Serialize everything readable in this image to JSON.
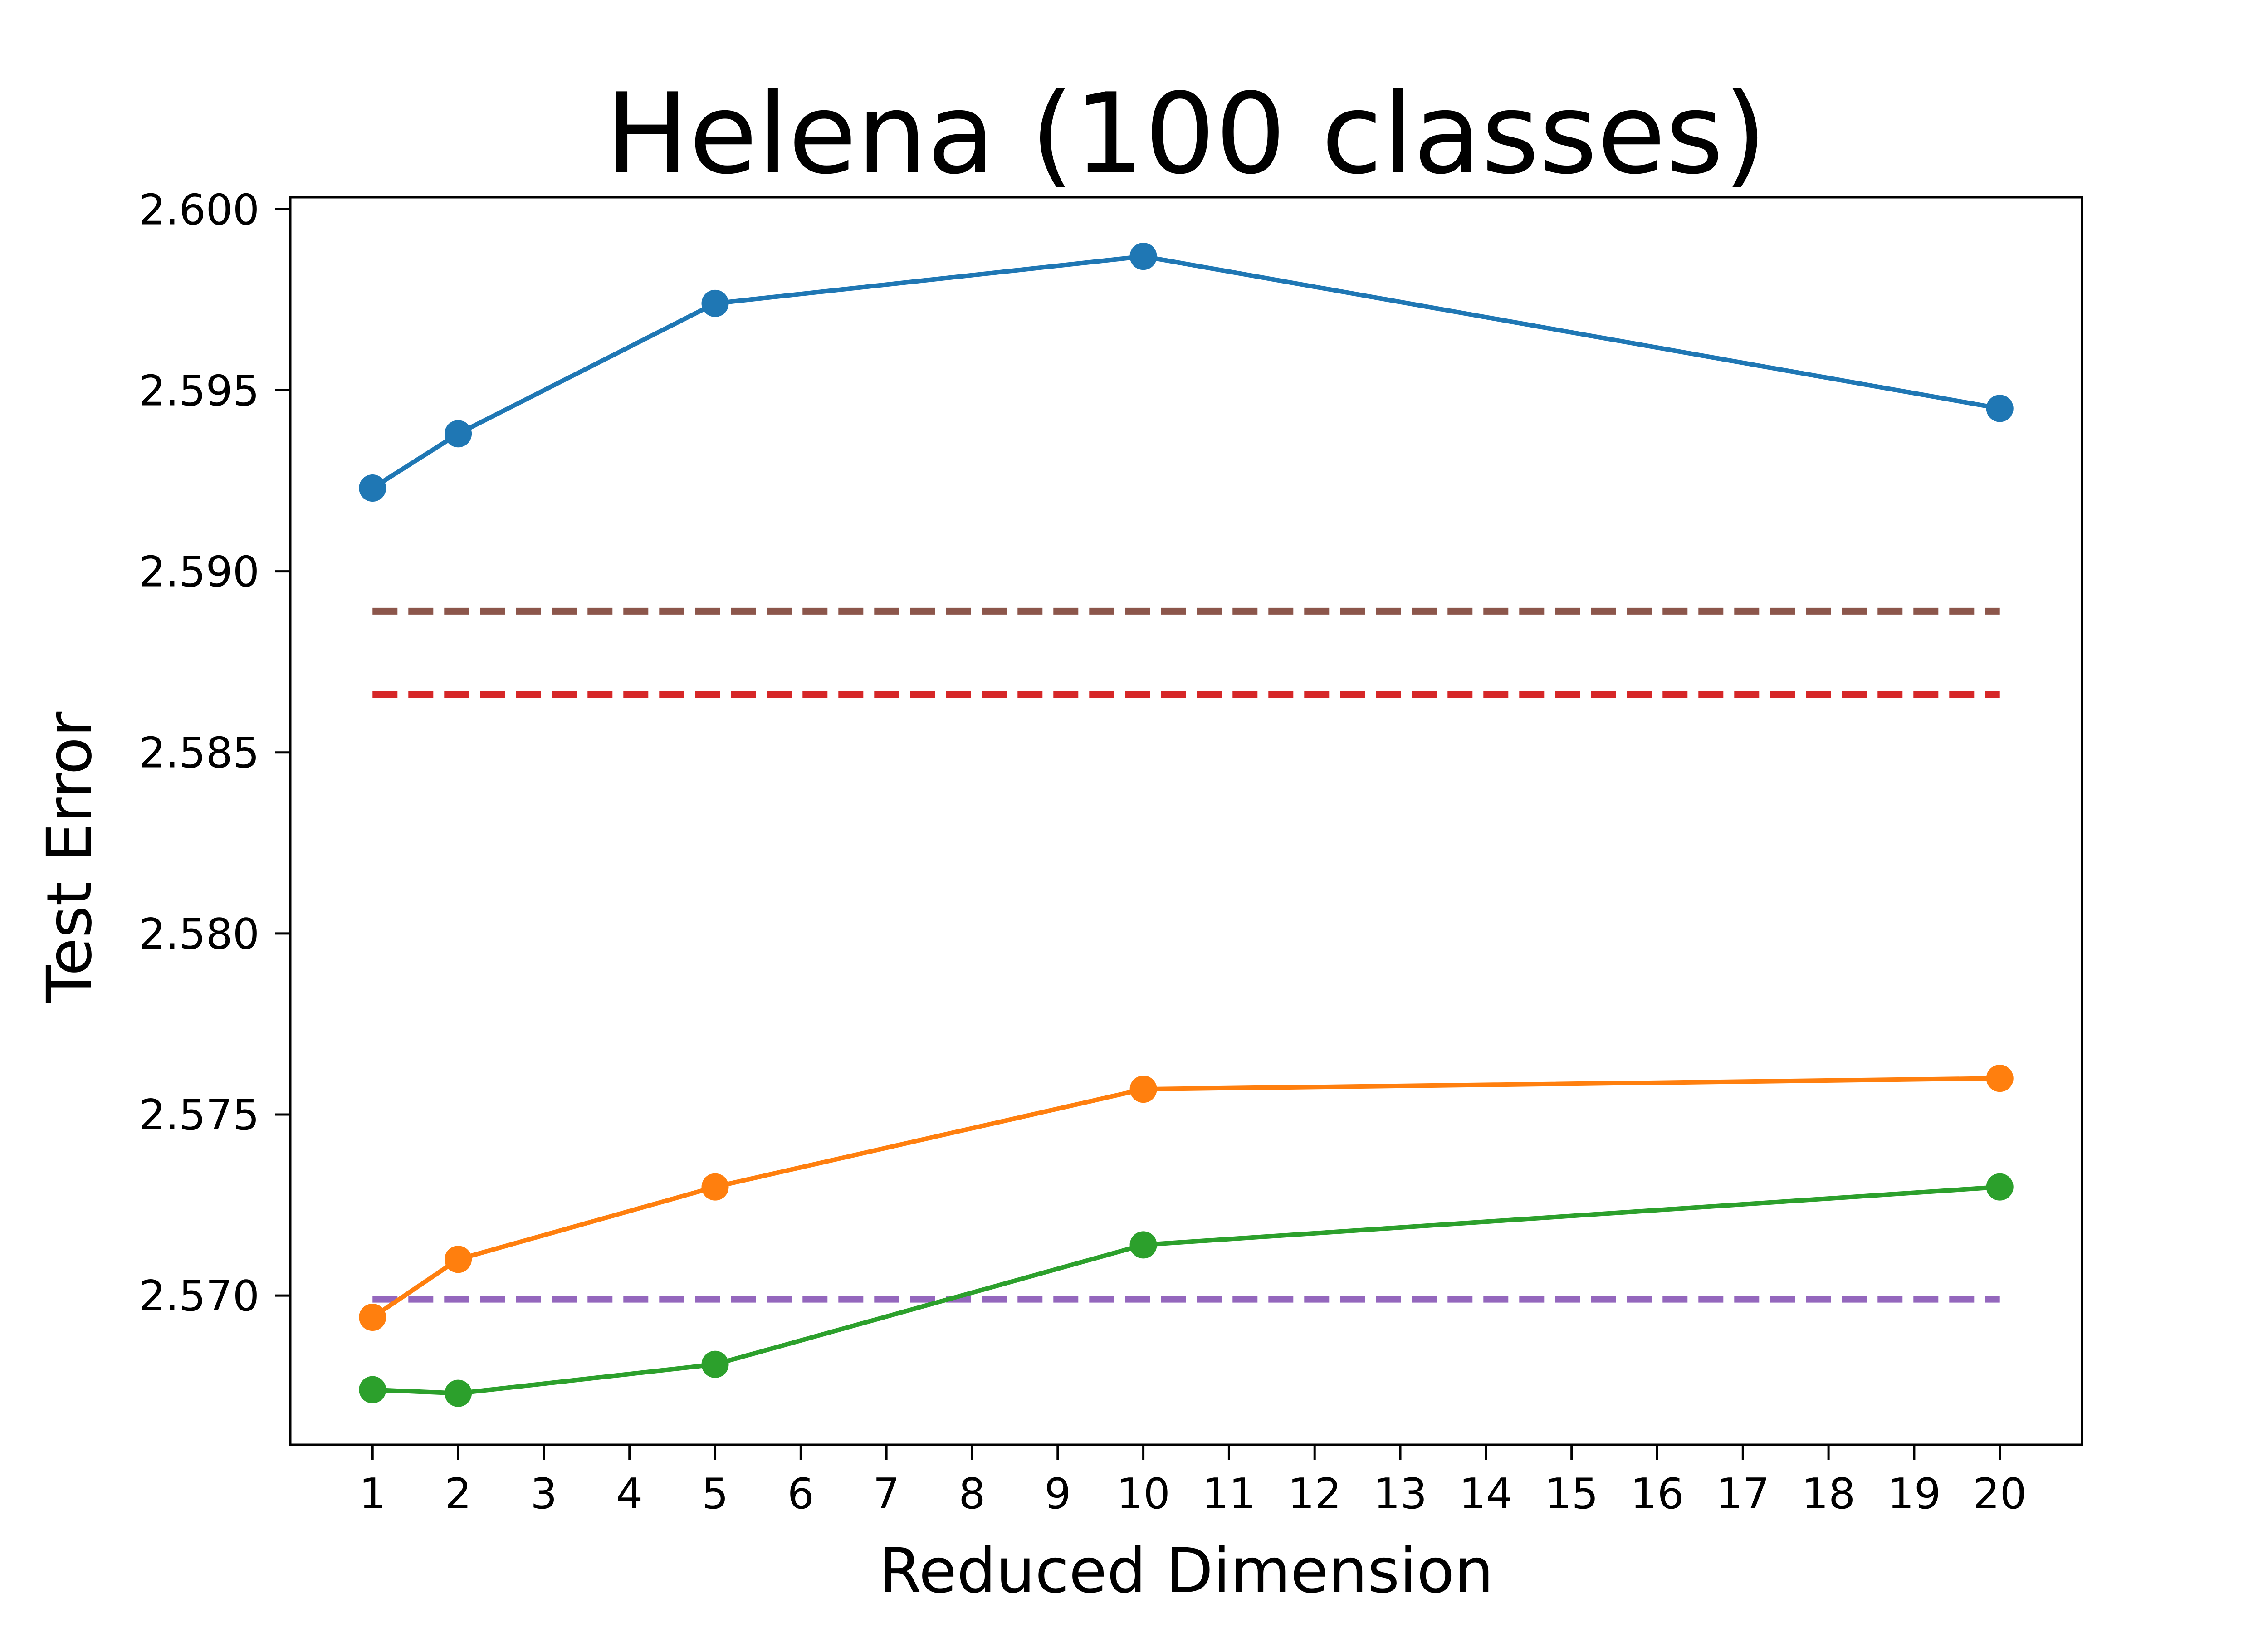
{
  "chart_data": {
    "type": "line",
    "title": "Helena (100 classes)",
    "xlabel": "Reduced Dimension",
    "ylabel": "Test Error",
    "xlim": [
      0.04,
      20.96
    ],
    "ylim": [
      2.56588,
      2.60033
    ],
    "xticks": [
      1,
      2,
      3,
      4,
      5,
      6,
      7,
      8,
      9,
      10,
      11,
      12,
      13,
      14,
      15,
      16,
      17,
      18,
      19,
      20
    ],
    "xtick_labels": [
      "1",
      "2",
      "3",
      "4",
      "5",
      "6",
      "7",
      "8",
      "9",
      "10",
      "11",
      "12",
      "13",
      "14",
      "15",
      "16",
      "17",
      "18",
      "19",
      "20"
    ],
    "yticks": [
      2.57,
      2.575,
      2.58,
      2.585,
      2.59,
      2.595,
      2.6
    ],
    "ytick_labels": [
      "2.570",
      "2.575",
      "2.580",
      "2.585",
      "2.590",
      "2.595",
      "2.600"
    ],
    "grid": false,
    "legend": false,
    "x": [
      1,
      2,
      5,
      10,
      20
    ],
    "series": [
      {
        "color": "#1f77b4",
        "style": "solid",
        "marker": "circle",
        "values": [
          2.5923,
          2.5938,
          2.5974,
          2.5987,
          2.5945
        ]
      },
      {
        "color": "#ff7f0e",
        "style": "solid",
        "marker": "circle",
        "values": [
          2.5694,
          2.571,
          2.573,
          2.5757,
          2.576
        ]
      },
      {
        "color": "#2ca02c",
        "style": "solid",
        "marker": "circle",
        "values": [
          2.5674,
          2.5673,
          2.5681,
          2.5714,
          2.573
        ]
      }
    ],
    "reference_lines": [
      {
        "color": "#8c564b",
        "style": "dashed",
        "value": 2.5889,
        "x_range": [
          1,
          20
        ]
      },
      {
        "color": "#d62728",
        "style": "dashed",
        "value": 2.5866,
        "x_range": [
          1,
          20
        ]
      },
      {
        "color": "#9467bd",
        "style": "dashed",
        "value": 2.5699,
        "x_range": [
          1,
          20
        ]
      }
    ]
  }
}
